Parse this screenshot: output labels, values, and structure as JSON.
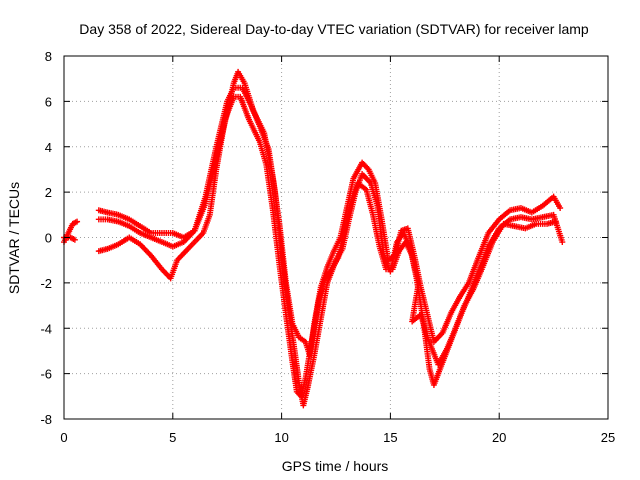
{
  "chart_data": {
    "type": "scatter",
    "title": "Day 358 of 2022, Sidereal Day-to-day VTEC variation (SDTVAR) for receiver lamp",
    "xlabel": "GPS time / hours",
    "ylabel": "SDTVAR / TECUs",
    "xlim": [
      0,
      25
    ],
    "ylim": [
      -8,
      8
    ],
    "xticks": [
      0,
      5,
      10,
      15,
      20,
      25
    ],
    "yticks": [
      -8,
      -6,
      -4,
      -2,
      0,
      2,
      4,
      6,
      8
    ],
    "grid": true,
    "marker": "plus",
    "color": "#ff0000",
    "series": [
      {
        "points": [
          [
            0.0,
            -0.2
          ],
          [
            0.2,
            0.2
          ],
          [
            0.4,
            0.6
          ],
          [
            0.6,
            0.7
          ],
          [
            1.6,
            1.2
          ],
          [
            2.0,
            1.1
          ],
          [
            2.5,
            1.0
          ],
          [
            3.0,
            0.8
          ],
          [
            3.5,
            0.5
          ],
          [
            4.0,
            0.2
          ],
          [
            4.5,
            0.2
          ],
          [
            5.0,
            0.2
          ],
          [
            5.5,
            0.0
          ],
          [
            6.0,
            0.3
          ],
          [
            6.5,
            1.5
          ],
          [
            7.0,
            3.5
          ],
          [
            7.5,
            5.5
          ],
          [
            7.8,
            6.8
          ],
          [
            8.0,
            7.3
          ],
          [
            8.3,
            6.8
          ],
          [
            8.7,
            5.6
          ],
          [
            9.2,
            4.6
          ],
          [
            9.6,
            2.6
          ],
          [
            9.9,
            0.6
          ],
          [
            10.2,
            -2.0
          ],
          [
            10.5,
            -3.8
          ],
          [
            10.8,
            -4.4
          ],
          [
            11.1,
            -4.6
          ],
          [
            11.3,
            -5.2
          ],
          [
            11.5,
            -3.8
          ],
          [
            11.8,
            -2.2
          ],
          [
            12.1,
            -1.3
          ],
          [
            12.4,
            -0.6
          ],
          [
            12.7,
            0.0
          ],
          [
            13.0,
            1.3
          ],
          [
            13.3,
            2.6
          ],
          [
            13.7,
            3.3
          ],
          [
            14.0,
            3.0
          ],
          [
            14.3,
            2.4
          ],
          [
            14.6,
            0.8
          ],
          [
            14.9,
            -1.0
          ],
          [
            15.2,
            -0.8
          ],
          [
            15.5,
            0.3
          ],
          [
            15.8,
            0.4
          ],
          [
            16.1,
            -0.8
          ],
          [
            16.4,
            -2.2
          ],
          [
            16.7,
            -3.4
          ],
          [
            17.0,
            -4.6
          ],
          [
            17.4,
            -4.2
          ],
          [
            17.8,
            -3.3
          ],
          [
            18.2,
            -2.6
          ],
          [
            18.6,
            -2.0
          ],
          [
            19.0,
            -1.0
          ],
          [
            19.5,
            0.2
          ],
          [
            20.0,
            0.8
          ],
          [
            20.5,
            1.2
          ],
          [
            21.0,
            1.3
          ],
          [
            21.5,
            1.1
          ],
          [
            22.0,
            1.4
          ],
          [
            22.5,
            1.8
          ],
          [
            22.8,
            1.3
          ]
        ]
      },
      {
        "points": [
          [
            0.0,
            0.0
          ],
          [
            0.3,
            0.0
          ],
          [
            0.5,
            -0.1
          ],
          [
            1.6,
            0.8
          ],
          [
            2.0,
            0.8
          ],
          [
            2.5,
            0.7
          ],
          [
            3.0,
            0.5
          ],
          [
            3.5,
            0.2
          ],
          [
            4.0,
            0.0
          ],
          [
            4.5,
            -0.2
          ],
          [
            5.0,
            -0.4
          ],
          [
            5.5,
            -0.2
          ],
          [
            6.0,
            0.3
          ],
          [
            6.5,
            1.8
          ],
          [
            7.0,
            4.0
          ],
          [
            7.5,
            6.0
          ],
          [
            7.8,
            6.6
          ],
          [
            8.2,
            6.6
          ],
          [
            8.6,
            5.8
          ],
          [
            9.0,
            4.9
          ],
          [
            9.4,
            3.9
          ],
          [
            9.7,
            2.0
          ],
          [
            10.0,
            -0.7
          ],
          [
            10.3,
            -3.0
          ],
          [
            10.6,
            -5.0
          ],
          [
            10.8,
            -6.4
          ],
          [
            11.0,
            -7.4
          ],
          [
            11.2,
            -6.6
          ],
          [
            11.5,
            -5.2
          ],
          [
            11.8,
            -3.6
          ],
          [
            12.1,
            -2.0
          ],
          [
            12.5,
            -1.0
          ],
          [
            12.8,
            -0.5
          ],
          [
            13.1,
            0.8
          ],
          [
            13.4,
            2.0
          ],
          [
            13.7,
            2.8
          ],
          [
            14.1,
            2.4
          ],
          [
            14.4,
            1.4
          ],
          [
            14.7,
            -0.8
          ],
          [
            15.0,
            -1.5
          ],
          [
            15.3,
            -0.2
          ],
          [
            15.6,
            0.2
          ],
          [
            15.9,
            -0.4
          ],
          [
            16.2,
            -1.8
          ],
          [
            16.5,
            -3.6
          ],
          [
            16.8,
            -5.8
          ],
          [
            17.0,
            -6.5
          ],
          [
            17.4,
            -5.5
          ],
          [
            17.8,
            -4.5
          ],
          [
            18.2,
            -3.5
          ],
          [
            18.6,
            -2.6
          ],
          [
            19.0,
            -1.6
          ],
          [
            19.5,
            -0.4
          ],
          [
            20.0,
            0.4
          ],
          [
            20.5,
            0.8
          ],
          [
            21.0,
            0.9
          ],
          [
            21.5,
            0.8
          ],
          [
            22.0,
            0.9
          ],
          [
            22.5,
            1.0
          ],
          [
            22.9,
            -0.2
          ]
        ]
      },
      {
        "points": [
          [
            1.6,
            -0.6
          ],
          [
            2.0,
            -0.5
          ],
          [
            2.5,
            -0.3
          ],
          [
            3.0,
            0.0
          ],
          [
            3.5,
            -0.3
          ],
          [
            4.0,
            -0.8
          ],
          [
            4.5,
            -1.4
          ],
          [
            4.9,
            -1.8
          ],
          [
            5.2,
            -1.0
          ],
          [
            5.6,
            -0.6
          ],
          [
            6.0,
            -0.2
          ],
          [
            6.4,
            0.2
          ],
          [
            6.7,
            1.0
          ],
          [
            7.0,
            3.0
          ],
          [
            7.4,
            5.2
          ],
          [
            7.8,
            6.2
          ],
          [
            8.1,
            6.2
          ],
          [
            8.5,
            5.2
          ],
          [
            9.0,
            4.2
          ],
          [
            9.3,
            3.2
          ],
          [
            9.6,
            1.2
          ],
          [
            9.9,
            -1.2
          ],
          [
            10.2,
            -3.4
          ],
          [
            10.5,
            -5.5
          ],
          [
            10.7,
            -6.8
          ],
          [
            10.9,
            -7.0
          ],
          [
            11.1,
            -6.2
          ],
          [
            11.4,
            -4.5
          ],
          [
            11.7,
            -2.8
          ],
          [
            12.0,
            -1.8
          ],
          [
            12.3,
            -1.4
          ],
          [
            12.6,
            -0.9
          ],
          [
            12.9,
            0.4
          ],
          [
            13.2,
            1.6
          ],
          [
            13.5,
            2.4
          ],
          [
            13.9,
            2.1
          ],
          [
            14.2,
            1.0
          ],
          [
            14.5,
            -0.4
          ],
          [
            14.8,
            -1.4
          ],
          [
            15.1,
            -1.4
          ],
          [
            15.4,
            -0.6
          ],
          [
            15.7,
            -0.2
          ],
          [
            16.0,
            -0.8
          ],
          [
            16.3,
            -2.0
          ],
          [
            16.0,
            -3.7
          ],
          [
            16.4,
            -3.4
          ],
          [
            16.7,
            -4.4
          ],
          [
            17.2,
            -5.6
          ],
          [
            17.6,
            -4.9
          ],
          [
            18.0,
            -4.0
          ],
          [
            18.4,
            -3.0
          ],
          [
            18.8,
            -2.3
          ],
          [
            19.2,
            -1.4
          ],
          [
            19.7,
            -0.2
          ],
          [
            20.2,
            0.6
          ],
          [
            20.7,
            0.5
          ],
          [
            21.2,
            0.4
          ],
          [
            21.7,
            0.6
          ],
          [
            22.2,
            0.6
          ],
          [
            22.6,
            0.7
          ]
        ]
      }
    ]
  }
}
